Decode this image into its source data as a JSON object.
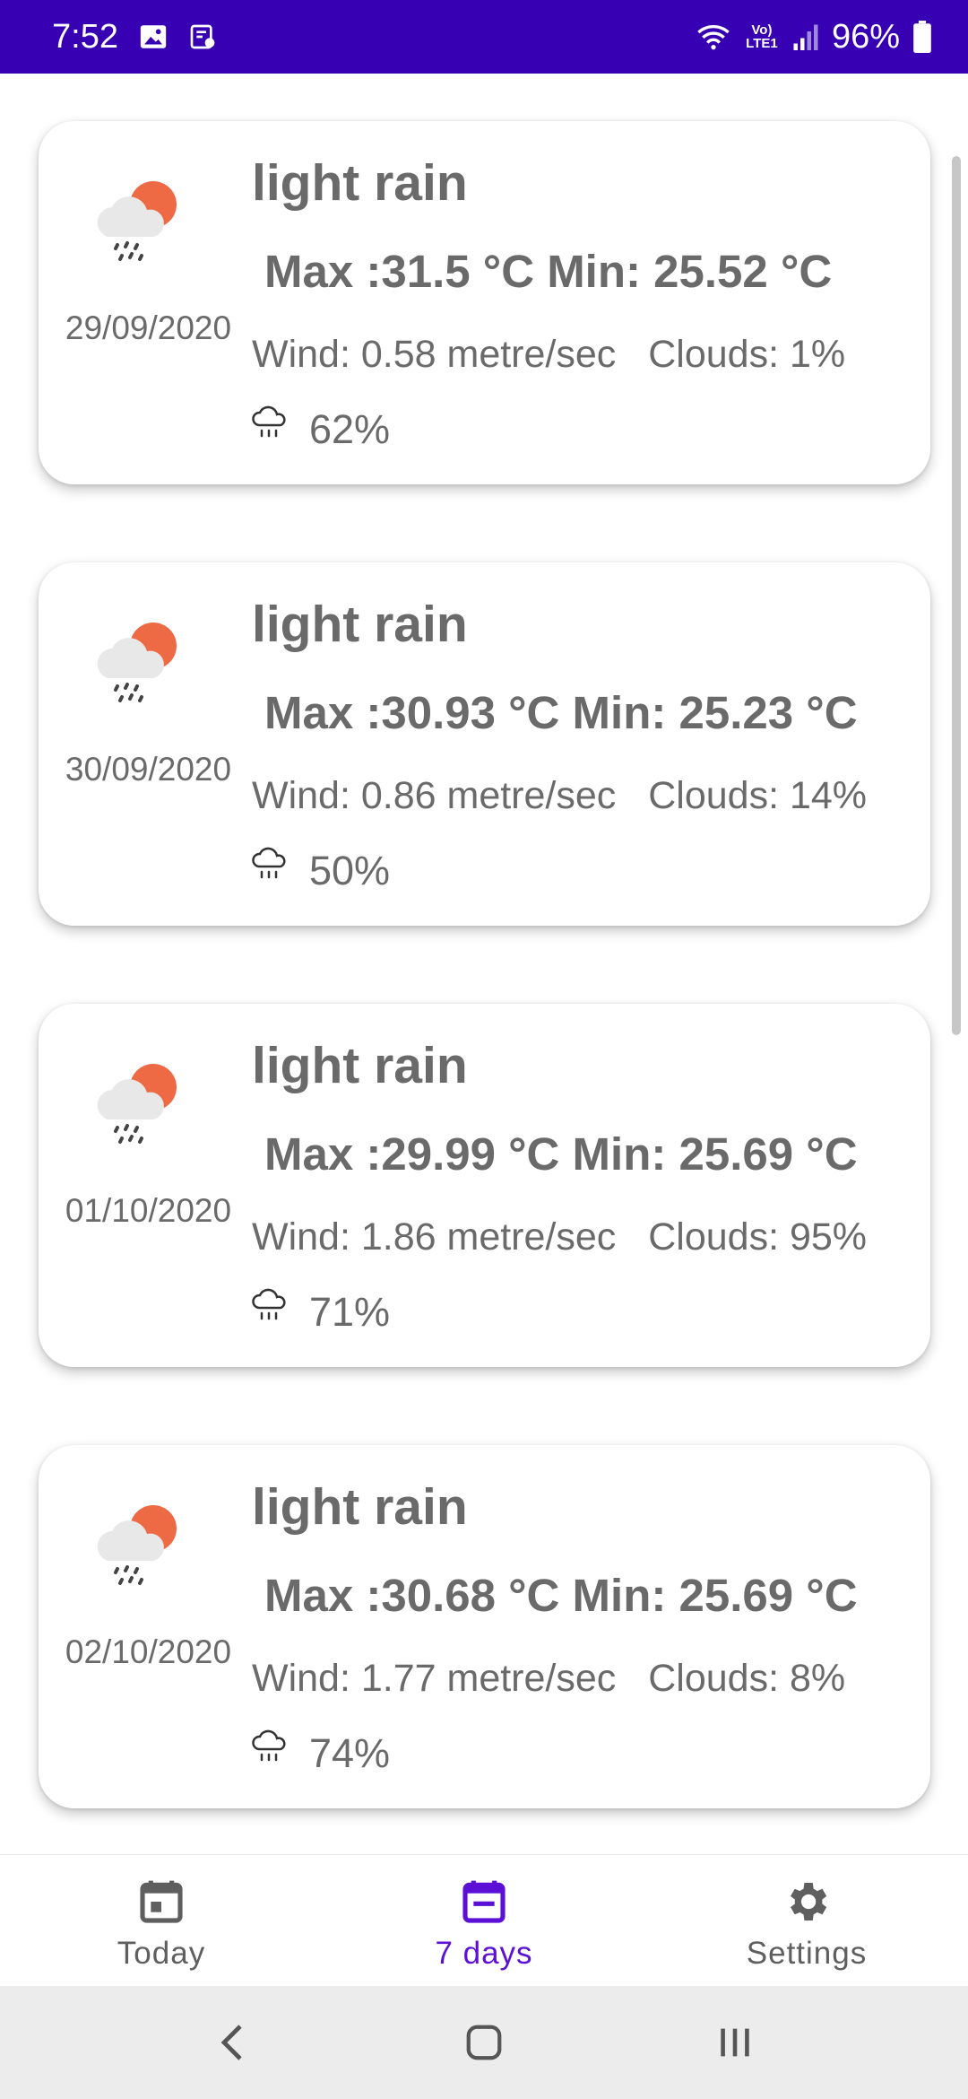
{
  "status_bar": {
    "time": "7:52",
    "battery": "96%",
    "network_label": "Vo) LTE1",
    "background": "#3700b3"
  },
  "forecast": [
    {
      "description": "light rain",
      "temps": "Max :31.5 °C Min: 25.52 °C",
      "wind": "Wind: 0.58 metre/sec",
      "clouds": "Clouds: 1%",
      "precipitation": "62%",
      "date": "29/09/2020",
      "icon": "rain-cloud-sun-icon"
    },
    {
      "description": "light rain",
      "temps": "Max :30.93 °C Min: 25.23 °C",
      "wind": "Wind: 0.86 metre/sec",
      "clouds": "Clouds: 14%",
      "precipitation": "50%",
      "date": "30/09/2020",
      "icon": "rain-cloud-sun-icon"
    },
    {
      "description": "light rain",
      "temps": "Max :29.99 °C Min: 25.69 °C",
      "wind": "Wind: 1.86 metre/sec",
      "clouds": "Clouds: 95%",
      "precipitation": "71%",
      "date": "01/10/2020",
      "icon": "rain-cloud-sun-icon"
    },
    {
      "description": "light rain",
      "temps": "Max :30.68 °C Min: 25.69 °C",
      "wind": "Wind: 1.77 metre/sec",
      "clouds": "Clouds: 8%",
      "precipitation": "74%",
      "date": "02/10/2020",
      "icon": "rain-cloud-sun-icon"
    }
  ],
  "bottom_nav": {
    "items": [
      {
        "label": "Today",
        "icon": "calendar-icon",
        "active": false
      },
      {
        "label": "7 days",
        "icon": "calendar-icon",
        "active": true
      },
      {
        "label": "Settings",
        "icon": "gear-icon",
        "active": false
      }
    ],
    "active_color": "#5c10d6"
  },
  "system_nav": {
    "buttons": [
      "back-icon",
      "home-icon",
      "recents-icon"
    ]
  }
}
